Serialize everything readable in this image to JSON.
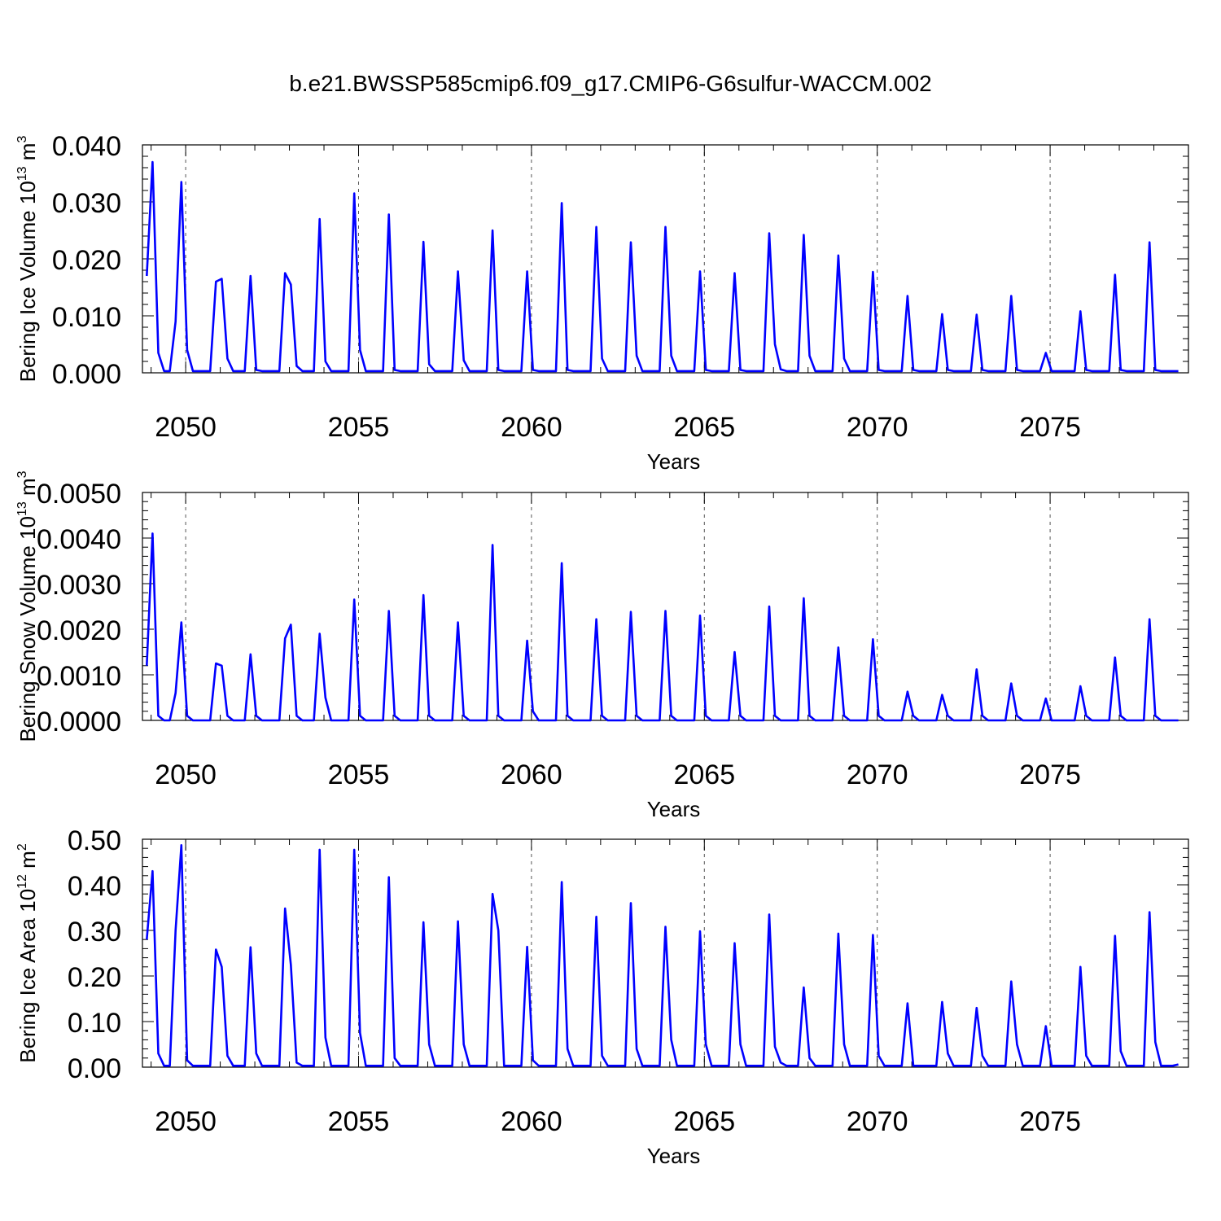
{
  "figure": {
    "title": "b.e21.BWSSP585cmip6.f09_g17.CMIP6-G6sulfur-WACCM.002",
    "line_color": "#0000ff",
    "axis_color": "#000000"
  },
  "chart_data": [
    {
      "type": "line",
      "title": "b.e21.BWSSP585cmip6.f09_g17.CMIP6-G6sulfur-WACCM.002",
      "xlabel": "Years",
      "ylabel": "Bering Ice Volume 10",
      "ylabel_sup": "13",
      "ylabel_unit": " m",
      "ylabel_unit_sup": "3",
      "xlim": [
        2048.75,
        2079
      ],
      "ylim": [
        0,
        0.04
      ],
      "yticks": [
        "0.000",
        "0.010",
        "0.020",
        "0.030",
        "0.040"
      ],
      "xticks": [
        "2050",
        "2055",
        "2060",
        "2065",
        "2070",
        "2075"
      ],
      "grid": "vertical dashed at 5-year intervals",
      "series": [
        {
          "x_start": 2048.875,
          "x_step": 0.16667,
          "values": [
            0.017,
            0.037,
            0.0035,
            0.0003,
            0.0003,
            0.009,
            0.0335,
            0.004,
            0.0003,
            0.0003,
            0.0003,
            0.0003,
            0.016,
            0.0165,
            0.0025,
            0.0003,
            0.0003,
            0.0003,
            0.017,
            0.0005,
            0.0003,
            0.0003,
            0.0003,
            0.0003,
            0.0175,
            0.0155,
            0.0012,
            0.0003,
            0.0003,
            0.0003,
            0.027,
            0.002,
            0.0003,
            0.0003,
            0.0003,
            0.0003,
            0.0315,
            0.004,
            0.0003,
            0.0003,
            0.0003,
            0.0003,
            0.0278,
            0.0005,
            0.0003,
            0.0003,
            0.0003,
            0.0003,
            0.023,
            0.0015,
            0.0003,
            0.0003,
            0.0003,
            0.0003,
            0.0178,
            0.0022,
            0.0003,
            0.0003,
            0.0003,
            0.0003,
            0.025,
            0.0005,
            0.0003,
            0.0003,
            0.0003,
            0.0003,
            0.0178,
            0.0005,
            0.0003,
            0.0003,
            0.0003,
            0.0003,
            0.0298,
            0.0005,
            0.0003,
            0.0003,
            0.0003,
            0.0003,
            0.0256,
            0.0025,
            0.0003,
            0.0003,
            0.0003,
            0.0003,
            0.0229,
            0.003,
            0.0003,
            0.0003,
            0.0003,
            0.0003,
            0.0256,
            0.003,
            0.0003,
            0.0003,
            0.0003,
            0.0003,
            0.0178,
            0.0005,
            0.0003,
            0.0003,
            0.0003,
            0.0003,
            0.0175,
            0.0005,
            0.0003,
            0.0003,
            0.0003,
            0.0003,
            0.0245,
            0.005,
            0.0006,
            0.0003,
            0.0003,
            0.0003,
            0.0242,
            0.003,
            0.0003,
            0.0003,
            0.0003,
            0.0003,
            0.0206,
            0.0025,
            0.0003,
            0.0003,
            0.0003,
            0.0003,
            0.0177,
            0.0005,
            0.0003,
            0.0003,
            0.0003,
            0.0003,
            0.0135,
            0.0005,
            0.0003,
            0.0003,
            0.0003,
            0.0003,
            0.0103,
            0.0005,
            0.0003,
            0.0003,
            0.0003,
            0.0003,
            0.0102,
            0.0005,
            0.0003,
            0.0003,
            0.0003,
            0.0003,
            0.0135,
            0.0005,
            0.0003,
            0.0003,
            0.0003,
            0.0003,
            0.0035,
            0.0003,
            0.0003,
            0.0003,
            0.0003,
            0.0003,
            0.0108,
            0.0005,
            0.0003,
            0.0003,
            0.0003,
            0.0003,
            0.0172,
            0.0005,
            0.0003,
            0.0003,
            0.0003,
            0.0003,
            0.0229,
            0.0005,
            0.0003,
            0.0003,
            0.0003,
            0.0003
          ]
        }
      ]
    },
    {
      "type": "line",
      "xlabel": "Years",
      "ylabel": "Bering Snow Volume 10",
      "ylabel_sup": "13",
      "ylabel_unit": " m",
      "ylabel_unit_sup": "3",
      "xlim": [
        2048.75,
        2079
      ],
      "ylim": [
        0,
        0.005
      ],
      "yticks": [
        "0.0000",
        "0.0010",
        "0.0020",
        "0.0030",
        "0.0040",
        "0.0050"
      ],
      "xticks": [
        "2050",
        "2055",
        "2060",
        "2065",
        "2070",
        "2075"
      ],
      "grid": "vertical dashed at 5-year intervals",
      "series": [
        {
          "x_start": 2048.875,
          "x_step": 0.16667,
          "values": [
            0.0012,
            0.0041,
            0.0001,
            0.0,
            0.0,
            0.0006,
            0.00215,
            0.0001,
            0.0,
            0.0,
            0.0,
            0.0,
            0.00125,
            0.0012,
            0.0001,
            0.0,
            0.0,
            0.0,
            0.00145,
            0.0001,
            0.0,
            0.0,
            0.0,
            0.0,
            0.0018,
            0.0021,
            0.0001,
            0.0,
            0.0,
            0.0,
            0.0019,
            0.0005,
            0.0,
            0.0,
            0.0,
            0.0,
            0.00265,
            0.0001,
            0.0,
            0.0,
            0.0,
            0.0,
            0.0024,
            0.0001,
            0.0,
            0.0,
            0.0,
            0.0,
            0.00275,
            0.0001,
            0.0,
            0.0,
            0.0,
            0.0,
            0.00215,
            0.0001,
            0.0,
            0.0,
            0.0,
            0.0,
            0.00385,
            0.0001,
            0.0,
            0.0,
            0.0,
            0.0,
            0.00175,
            0.0002,
            0.0,
            0.0,
            0.0,
            0.0,
            0.00345,
            0.0001,
            0.0,
            0.0,
            0.0,
            0.0,
            0.00222,
            0.0001,
            0.0,
            0.0,
            0.0,
            0.0,
            0.00238,
            0.0001,
            0.0,
            0.0,
            0.0,
            0.0,
            0.0024,
            0.0001,
            0.0,
            0.0,
            0.0,
            0.0,
            0.0023,
            0.0001,
            0.0,
            0.0,
            0.0,
            0.0,
            0.0015,
            0.0001,
            0.0,
            0.0,
            0.0,
            0.0,
            0.0025,
            0.0001,
            0.0,
            0.0,
            0.0,
            0.0,
            0.00268,
            0.0001,
            0.0,
            0.0,
            0.0,
            0.0,
            0.0016,
            0.0001,
            0.0,
            0.0,
            0.0,
            0.0,
            0.00178,
            0.0001,
            0.0,
            0.0,
            0.0,
            0.0,
            0.00063,
            0.0001,
            0.0,
            0.0,
            0.0,
            0.0,
            0.00056,
            0.0001,
            0.0,
            0.0,
            0.0,
            0.0,
            0.00112,
            0.0001,
            0.0,
            0.0,
            0.0,
            0.0,
            0.00081,
            0.0001,
            0.0,
            0.0,
            0.0,
            0.0,
            0.00048,
            0.0,
            0.0,
            0.0,
            0.0,
            0.0,
            0.00075,
            0.0001,
            0.0,
            0.0,
            0.0,
            0.0,
            0.00138,
            0.0001,
            0.0,
            0.0,
            0.0,
            0.0,
            0.00222,
            0.0001,
            0.0,
            0.0,
            0.0,
            0.0
          ]
        }
      ]
    },
    {
      "type": "line",
      "xlabel": "Years",
      "ylabel": "Bering Ice Area 10",
      "ylabel_sup": "12",
      "ylabel_unit": " m",
      "ylabel_unit_sup": "2",
      "xlim": [
        2048.75,
        2079
      ],
      "ylim": [
        0,
        0.5
      ],
      "yticks": [
        "0.00",
        "0.10",
        "0.20",
        "0.30",
        "0.40",
        "0.50"
      ],
      "xticks": [
        "2050",
        "2055",
        "2060",
        "2065",
        "2070",
        "2075"
      ],
      "grid": "vertical dashed at 5-year intervals",
      "series": [
        {
          "x_start": 2048.875,
          "x_step": 0.16667,
          "values": [
            0.28,
            0.43,
            0.03,
            0.003,
            0.003,
            0.3,
            0.487,
            0.015,
            0.003,
            0.003,
            0.003,
            0.003,
            0.258,
            0.22,
            0.025,
            0.003,
            0.003,
            0.003,
            0.263,
            0.03,
            0.003,
            0.003,
            0.003,
            0.003,
            0.348,
            0.225,
            0.01,
            0.003,
            0.003,
            0.003,
            0.477,
            0.065,
            0.003,
            0.003,
            0.003,
            0.003,
            0.477,
            0.075,
            0.003,
            0.003,
            0.003,
            0.003,
            0.417,
            0.02,
            0.003,
            0.003,
            0.003,
            0.003,
            0.318,
            0.05,
            0.003,
            0.003,
            0.003,
            0.003,
            0.32,
            0.05,
            0.003,
            0.003,
            0.003,
            0.003,
            0.38,
            0.3,
            0.003,
            0.003,
            0.003,
            0.003,
            0.264,
            0.015,
            0.003,
            0.003,
            0.003,
            0.003,
            0.406,
            0.04,
            0.003,
            0.003,
            0.003,
            0.003,
            0.33,
            0.025,
            0.003,
            0.003,
            0.003,
            0.003,
            0.36,
            0.04,
            0.003,
            0.003,
            0.003,
            0.003,
            0.308,
            0.06,
            0.003,
            0.003,
            0.003,
            0.003,
            0.298,
            0.05,
            0.003,
            0.003,
            0.003,
            0.003,
            0.272,
            0.05,
            0.003,
            0.003,
            0.003,
            0.003,
            0.335,
            0.045,
            0.01,
            0.003,
            0.003,
            0.003,
            0.175,
            0.02,
            0.003,
            0.003,
            0.003,
            0.003,
            0.293,
            0.05,
            0.003,
            0.003,
            0.003,
            0.003,
            0.29,
            0.025,
            0.003,
            0.003,
            0.003,
            0.003,
            0.14,
            0.003,
            0.003,
            0.003,
            0.003,
            0.003,
            0.143,
            0.03,
            0.003,
            0.003,
            0.003,
            0.003,
            0.13,
            0.025,
            0.003,
            0.003,
            0.003,
            0.003,
            0.188,
            0.05,
            0.003,
            0.003,
            0.003,
            0.003,
            0.09,
            0.003,
            0.003,
            0.003,
            0.003,
            0.003,
            0.22,
            0.025,
            0.003,
            0.003,
            0.003,
            0.003,
            0.288,
            0.035,
            0.003,
            0.003,
            0.003,
            0.003,
            0.34,
            0.055,
            0.003,
            0.003,
            0.003,
            0.006
          ]
        }
      ]
    }
  ]
}
